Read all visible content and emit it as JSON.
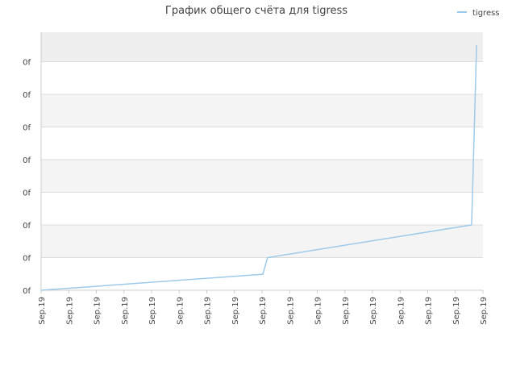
{
  "chart_data": {
    "type": "line",
    "title": "График общего счёта для tigress",
    "series": [
      {
        "name": "tigress",
        "color": "#9ecae9",
        "x": [
          0,
          8.03,
          8.2,
          15.59,
          15.77
        ],
        "values": [
          0,
          0.49,
          1.0,
          2.0,
          7.51
        ]
      }
    ],
    "xlim": [
      0,
      16
    ],
    "xticks": [
      {
        "value": 0,
        "label": "Sep.19"
      },
      {
        "value": 1,
        "label": "Sep.19"
      },
      {
        "value": 2,
        "label": "Sep.19"
      },
      {
        "value": 3,
        "label": "Sep.19"
      },
      {
        "value": 4,
        "label": "Sep.19"
      },
      {
        "value": 5,
        "label": "Sep.19"
      },
      {
        "value": 6,
        "label": "Sep.19"
      },
      {
        "value": 7,
        "label": "Sep.19"
      },
      {
        "value": 8,
        "label": "Sep.19"
      },
      {
        "value": 9,
        "label": "Sep.19"
      },
      {
        "value": 10,
        "label": "Sep.19"
      },
      {
        "value": 11,
        "label": "Sep.19"
      },
      {
        "value": 12,
        "label": "Sep.19"
      },
      {
        "value": 13,
        "label": "Sep.19"
      },
      {
        "value": 14,
        "label": "Sep.19"
      },
      {
        "value": 15,
        "label": "Sep.19"
      },
      {
        "value": 16,
        "label": "Sep.19"
      }
    ],
    "ylim": [
      0,
      7.9
    ],
    "yticks": [
      {
        "value": 0,
        "label": "0f"
      },
      {
        "value": 1,
        "label": "0f"
      },
      {
        "value": 2,
        "label": "0f"
      },
      {
        "value": 3,
        "label": "0f"
      },
      {
        "value": 4,
        "label": "0f"
      },
      {
        "value": 5,
        "label": "0f"
      },
      {
        "value": 6,
        "label": "0f"
      },
      {
        "value": 7,
        "label": "0f"
      }
    ],
    "grid": true,
    "legend": "top-right"
  }
}
